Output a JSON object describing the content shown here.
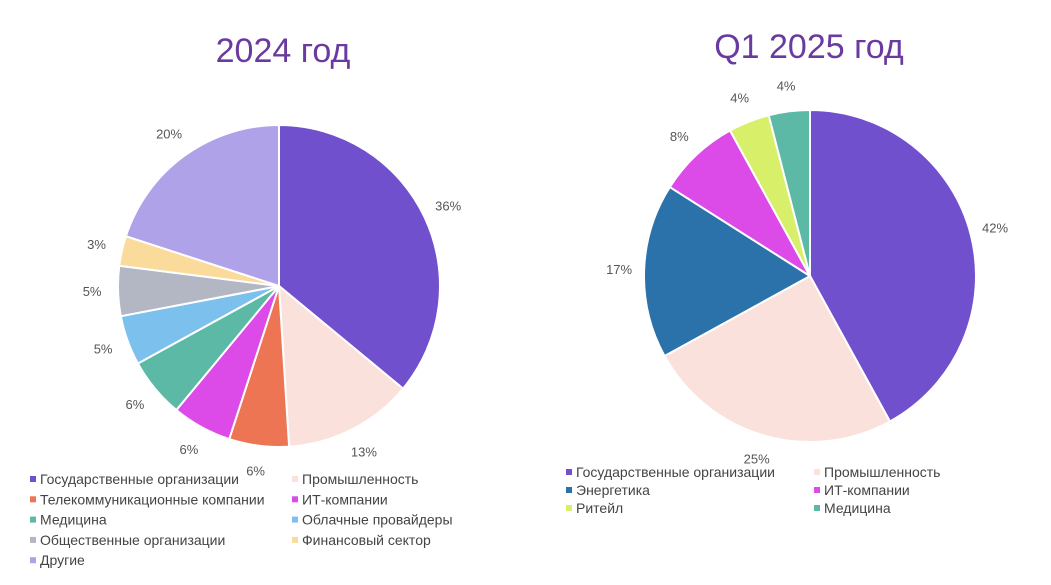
{
  "chart_data": [
    {
      "type": "pie",
      "title": "2024 год",
      "categories": [
        "Государственные организации",
        "Промышленность",
        "Телекоммуникационные компании",
        "ИТ-компании",
        "Медицина",
        "Облачные провайдеры",
        "Общественные организации",
        "Финансовый сектор",
        "Другие"
      ],
      "values": [
        36,
        13,
        6,
        6,
        6,
        5,
        5,
        3,
        20
      ],
      "value_labels": [
        "36%",
        "13%",
        "6%",
        "6%",
        "6%",
        "5%",
        "5%",
        "3%",
        "20%"
      ],
      "colors": [
        "#7050cc",
        "#fbe1dc",
        "#ee7553",
        "#dc4ae8",
        "#5cb9a6",
        "#7cc0ee",
        "#b3b6c3",
        "#fbdb9c",
        "#b0a2e8"
      ],
      "legend": "bottom"
    },
    {
      "type": "pie",
      "title": "Q1 2025 год",
      "categories": [
        "Государственные организации",
        "Промышленность",
        "Энергетика",
        "ИТ-компании",
        "Ритейл",
        "Медицина"
      ],
      "values": [
        42,
        25,
        17,
        8,
        4,
        4
      ],
      "value_labels": [
        "42%",
        "25%",
        "17%",
        "8%",
        "4%",
        "4%"
      ],
      "colors": [
        "#7050cc",
        "#fbe1dc",
        "#2b72aa",
        "#dc4ae8",
        "#d8ef6a",
        "#5cb9a6"
      ],
      "legend": "bottom"
    }
  ]
}
